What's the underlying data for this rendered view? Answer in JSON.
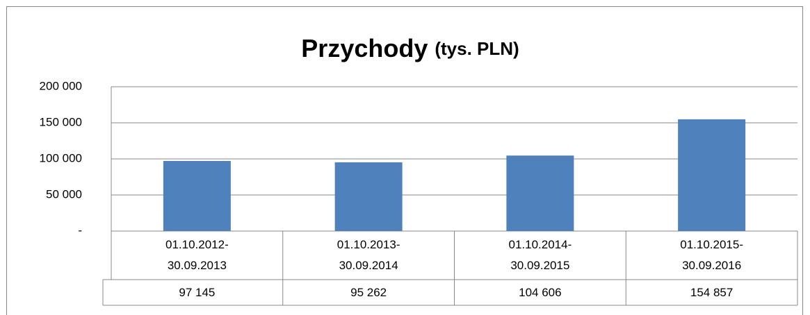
{
  "chart_data": {
    "type": "bar",
    "title": "Przychody",
    "subtitle": "(tys. PLN)",
    "categories": [
      "01.10.2012-30.09.2013",
      "01.10.2013-30.09.2014",
      "01.10.2014-30.09.2015",
      "01.10.2015-30.09.2016"
    ],
    "values": [
      97145,
      95262,
      104606,
      154857
    ],
    "value_labels": [
      "97 145",
      "95 262",
      "104 606",
      "154 857"
    ],
    "color": "#4f81bd",
    "ylim": [
      0,
      200000
    ],
    "yticks": [
      {
        "value": 0,
        "label": "-"
      },
      {
        "value": 50000,
        "label": "50 000"
      },
      {
        "value": 100000,
        "label": "100 000"
      },
      {
        "value": 150000,
        "label": "150 000"
      },
      {
        "value": 200000,
        "label": "200 000"
      }
    ],
    "grid": true
  }
}
